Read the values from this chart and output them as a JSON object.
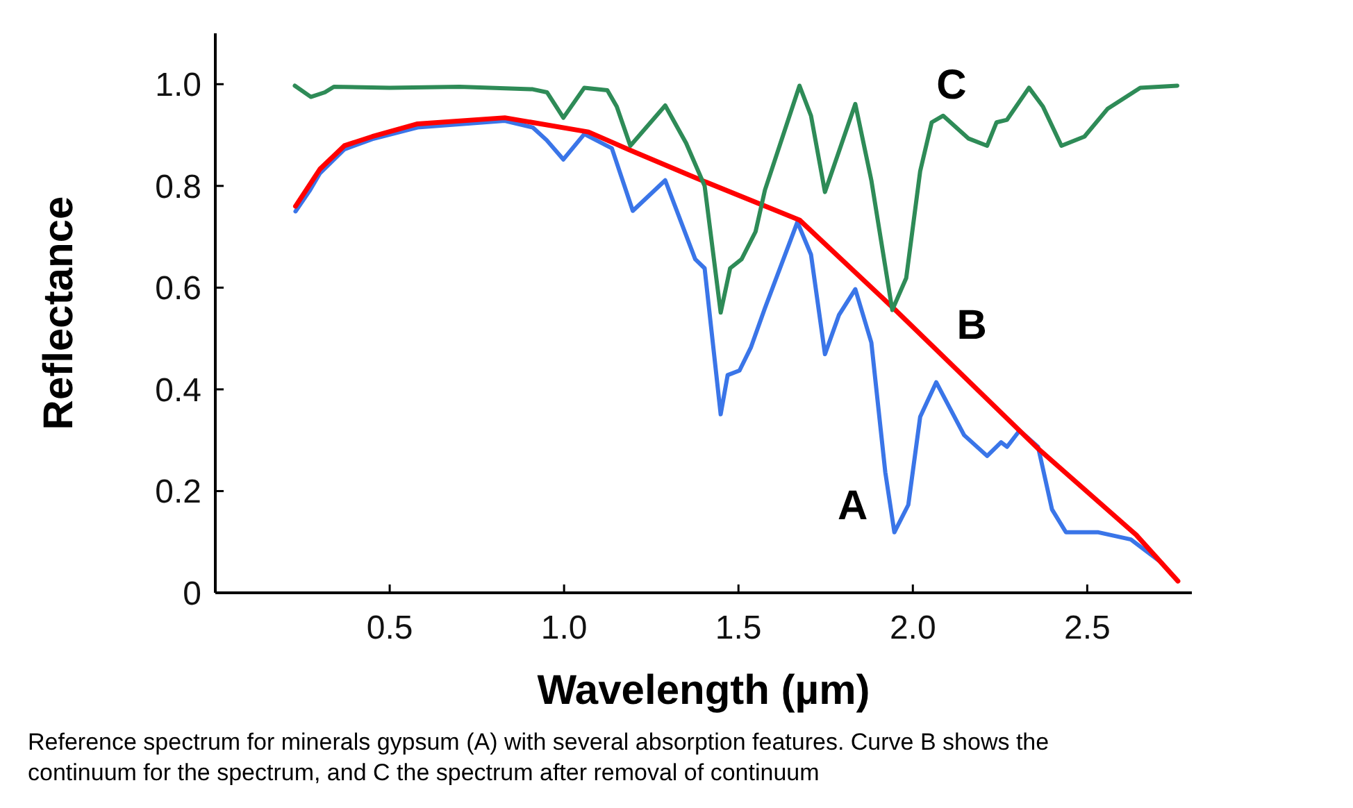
{
  "chart_data": {
    "type": "line",
    "xlabel": "Wavelength (µm)",
    "ylabel": "Reflectance",
    "xlim": [
      0,
      2.8
    ],
    "ylim": [
      0,
      1.1
    ],
    "xticks": [
      0.5,
      {
        "value": 1,
        "label": "1.0"
      },
      1.5,
      {
        "value": 2,
        "label": "2.0"
      },
      2.5
    ],
    "yticks": [
      0,
      0.2,
      0.4,
      0.6,
      0.8,
      {
        "value": 1,
        "label": "1.0"
      }
    ],
    "grid": false,
    "marker": "none",
    "line_style": "solid",
    "series": [
      {
        "name": "A",
        "color": "#3a75e8",
        "x": [
          0.23,
          0.27,
          0.3,
          0.37,
          0.45,
          0.58,
          0.83,
          0.91,
          0.95,
          0.998,
          1.058,
          1.137,
          1.197,
          1.29,
          1.376,
          1.403,
          1.449,
          1.469,
          1.503,
          1.536,
          1.576,
          1.669,
          1.708,
          1.748,
          1.788,
          1.835,
          1.881,
          1.921,
          1.947,
          1.987,
          2.021,
          2.067,
          2.147,
          2.213,
          2.253,
          2.27,
          2.306,
          2.359,
          2.399,
          2.439,
          2.532,
          2.625,
          2.704
        ],
        "values": [
          0.75,
          0.79,
          0.825,
          0.872,
          0.892,
          0.915,
          0.928,
          0.915,
          0.89,
          0.852,
          0.902,
          0.874,
          0.751,
          0.811,
          0.656,
          0.638,
          0.351,
          0.428,
          0.437,
          0.483,
          0.56,
          0.729,
          0.665,
          0.469,
          0.546,
          0.597,
          0.492,
          0.237,
          0.119,
          0.173,
          0.346,
          0.414,
          0.31,
          0.269,
          0.296,
          0.287,
          0.319,
          0.287,
          0.164,
          0.119,
          0.119,
          0.105,
          0.064
        ]
      },
      {
        "name": "B",
        "color": "#ff0000",
        "x": [
          0.23,
          0.3,
          0.37,
          0.45,
          0.58,
          0.83,
          1.07,
          1.19,
          1.38,
          1.675,
          1.95,
          2.36,
          2.64,
          2.76
        ],
        "values": [
          0.76,
          0.833,
          0.879,
          0.897,
          0.922,
          0.934,
          0.906,
          0.87,
          0.815,
          0.733,
          0.556,
          0.283,
          0.114,
          0.023
        ]
      },
      {
        "name": "C",
        "color": "#2e8b57",
        "x": [
          0.228,
          0.274,
          0.314,
          0.34,
          0.5,
          0.7,
          0.91,
          0.951,
          0.998,
          1.058,
          1.124,
          1.151,
          1.19,
          1.29,
          1.35,
          1.403,
          1.449,
          1.476,
          1.509,
          1.549,
          1.576,
          1.675,
          1.708,
          1.748,
          1.835,
          1.881,
          1.941,
          1.981,
          2.021,
          2.054,
          2.087,
          2.16,
          2.213,
          2.24,
          2.27,
          2.333,
          2.373,
          2.426,
          2.492,
          2.559,
          2.652,
          2.758
        ],
        "values": [
          0.997,
          0.975,
          0.984,
          0.995,
          0.993,
          0.995,
          0.99,
          0.984,
          0.934,
          0.993,
          0.988,
          0.956,
          0.879,
          0.958,
          0.884,
          0.8,
          0.551,
          0.638,
          0.656,
          0.71,
          0.792,
          0.997,
          0.938,
          0.788,
          0.961,
          0.811,
          0.556,
          0.619,
          0.829,
          0.925,
          0.938,
          0.893,
          0.879,
          0.925,
          0.93,
          0.993,
          0.956,
          0.879,
          0.897,
          0.952,
          0.993,
          0.997
        ]
      }
    ],
    "annotations": [
      "Reference spectrum for minerals gypsum (A) with several  absorption features. Curve B shows the continuum for the spectrum, and C the spectrum after removal of continuum"
    ]
  }
}
